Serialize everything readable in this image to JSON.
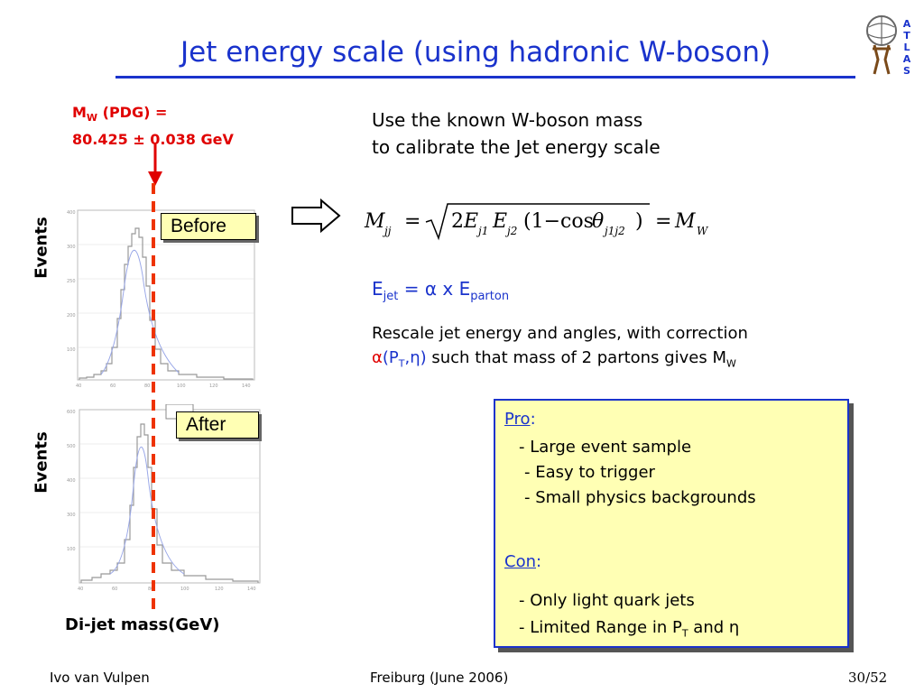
{
  "title": "Jet energy scale (using hadronic W-boson)",
  "logo_text": "ATLAS",
  "mw": {
    "line1_prefix": "M",
    "line1_sub": "W",
    "line1_suffix": " (PDG) =",
    "line2": "80.425 ± 0.038 GeV"
  },
  "plots": {
    "ylabel": "Events",
    "xlabel": "Di-jet mass(GeV)",
    "before_label": "Before",
    "after_label": "After"
  },
  "intro": {
    "line1": "Use the known W-boson mass",
    "line2": "to calibrate the Jet energy scale"
  },
  "ejet": {
    "e": "E",
    "jet": "jet",
    "eq": " = α x E",
    "parton": "parton"
  },
  "rescale": {
    "line1": "Rescale jet energy and angles, with correction",
    "alpha": "α",
    "p": "(P",
    "t": "T",
    "eta": ",η)",
    "rest": " such that mass of 2 partons gives M",
    "w": "W"
  },
  "procon": {
    "pro_label": "Pro",
    "pro_items": [
      "- Large event sample",
      "- Easy to trigger",
      "- Small physics backgrounds"
    ],
    "con_label": "Con",
    "con_item1": "- Only light quark jets",
    "con_item2_prefix": "- Limited Range in P",
    "con_item2_sub": "T",
    "con_item2_suffix": " and η"
  },
  "footer": {
    "author": "Ivo van Vulpen",
    "event": "Freiburg (June 2006)",
    "page": "30/52"
  },
  "colors": {
    "blue": "#1a33cc",
    "red": "#e00000",
    "yellow": "#ffffb4"
  }
}
